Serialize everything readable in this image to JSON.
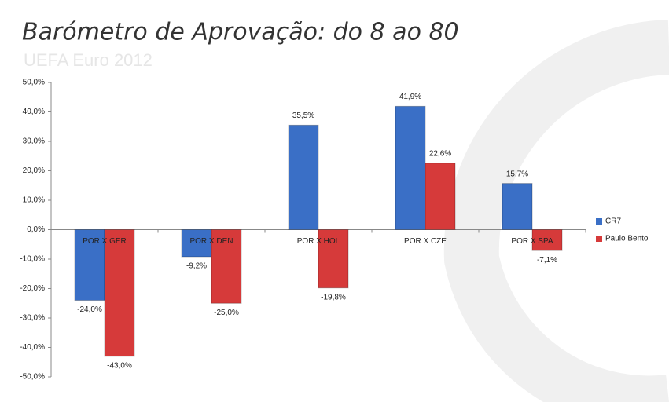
{
  "chart_data": {
    "type": "bar",
    "title": "Barómetro de Aprovação: do 8 ao 80",
    "subtitle": "UEFA Euro 2012",
    "categories": [
      "POR X GER",
      "POR X DEN",
      "POR X HOL",
      "POR X CZE",
      "POR X SPA"
    ],
    "series": [
      {
        "name": "CR7",
        "color": "#3a6fc6",
        "values": [
          -24.0,
          -9.2,
          35.5,
          41.9,
          15.7
        ],
        "value_labels": [
          "-24,0%",
          "-9,2%",
          "35,5%",
          "41,9%",
          "15,7%"
        ]
      },
      {
        "name": "Paulo Bento",
        "color": "#d63a3a",
        "values": [
          -43.0,
          -25.0,
          -19.8,
          22.6,
          -7.1
        ],
        "value_labels": [
          "-43,0%",
          "-25,0%",
          "-19,8%",
          "22,6%",
          "-7,1%"
        ]
      }
    ],
    "ylim": [
      -50,
      50
    ],
    "yticks": [
      {
        "value": -50,
        "label": "-50,0%"
      },
      {
        "value": -40,
        "label": "-40,0%"
      },
      {
        "value": -30,
        "label": "-30,0%"
      },
      {
        "value": -20,
        "label": "-20,0%"
      },
      {
        "value": -10,
        "label": "-10,0%"
      },
      {
        "value": 0,
        "label": "0,0%"
      },
      {
        "value": 10,
        "label": "10,0%"
      },
      {
        "value": 20,
        "label": "20,0%"
      },
      {
        "value": 30,
        "label": "30,0%"
      },
      {
        "value": 40,
        "label": "40,0%"
      },
      {
        "value": 50,
        "label": "50,0%"
      }
    ],
    "legend": "right"
  }
}
